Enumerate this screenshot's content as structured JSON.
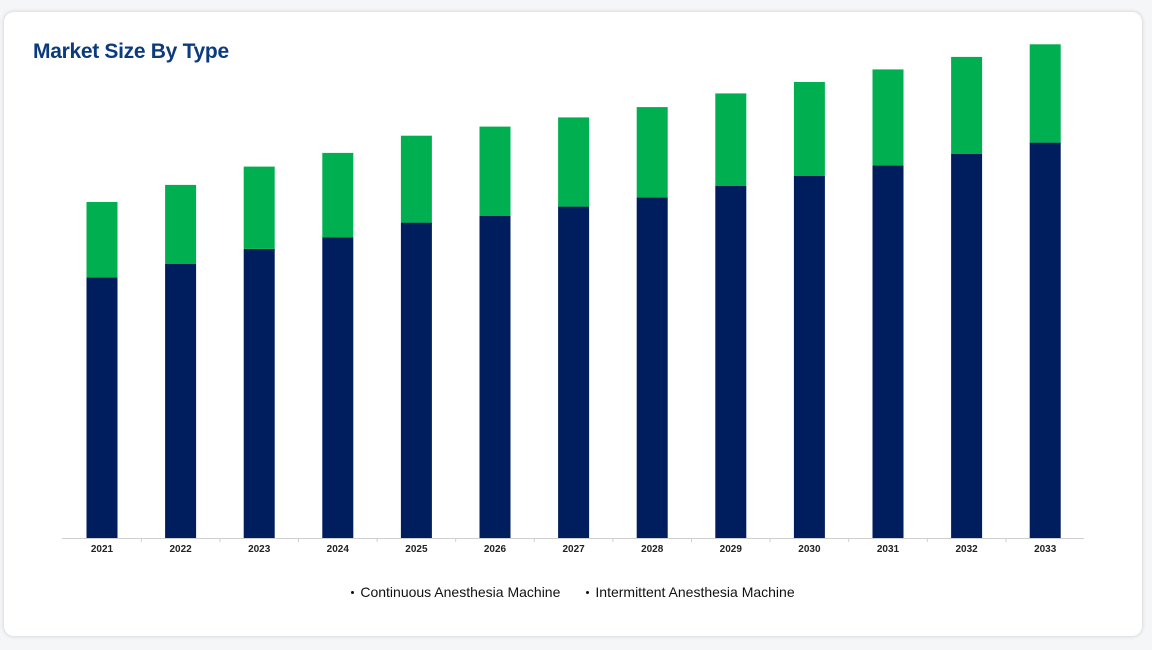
{
  "card": {
    "title": "Market Size By Type"
  },
  "chart_data": {
    "type": "bar",
    "stacked": true,
    "title": "Market Size By Type",
    "xlabel": "",
    "ylabel": "",
    "categories": [
      "2021",
      "2022",
      "2023",
      "2024",
      "2025",
      "2026",
      "2027",
      "2028",
      "2029",
      "2030",
      "2031",
      "2032",
      "2033"
    ],
    "ylim": [
      0,
      420
    ],
    "grid": false,
    "legend_position": "bottom-center",
    "series": [
      {
        "name": "Continuous Anesthesia Machine",
        "color": "#001d5e",
        "values": [
          228,
          240,
          253,
          263,
          276,
          282,
          290,
          298,
          308,
          317,
          326,
          336,
          346
        ]
      },
      {
        "name": "Intermittent Anesthesia Machine",
        "color": "#00b050",
        "values": [
          66,
          69,
          72,
          74,
          76,
          78,
          78,
          79,
          81,
          82,
          84,
          85,
          86
        ]
      }
    ]
  }
}
